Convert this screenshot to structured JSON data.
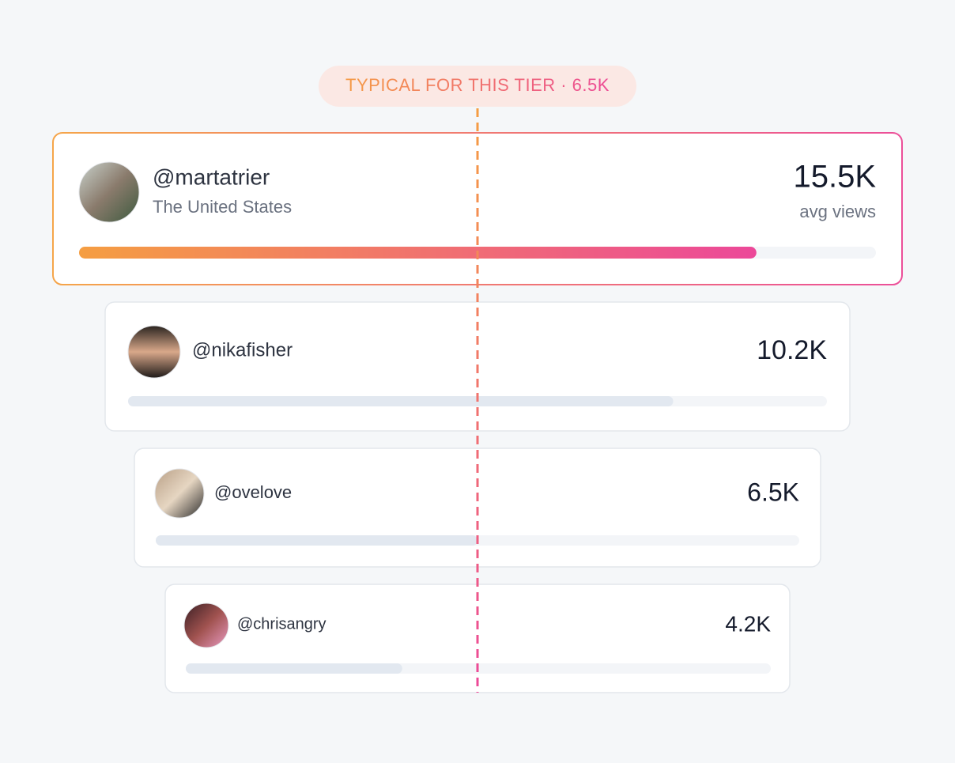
{
  "badge": "TYPICAL FOR THIS TIER · 6.5K",
  "creators": [
    {
      "handle": "@martatrier",
      "location": "The United States",
      "value": "15.5K",
      "value_caption": "avg views",
      "bar_percent": 85
    },
    {
      "handle": "@nikafisher",
      "value": "10.2K",
      "bar_percent": 78
    },
    {
      "handle": "@ovelove",
      "value": "6.5K",
      "bar_percent": 50
    },
    {
      "handle": "@chrisangry",
      "value": "4.2K",
      "bar_percent": 37
    }
  ]
}
